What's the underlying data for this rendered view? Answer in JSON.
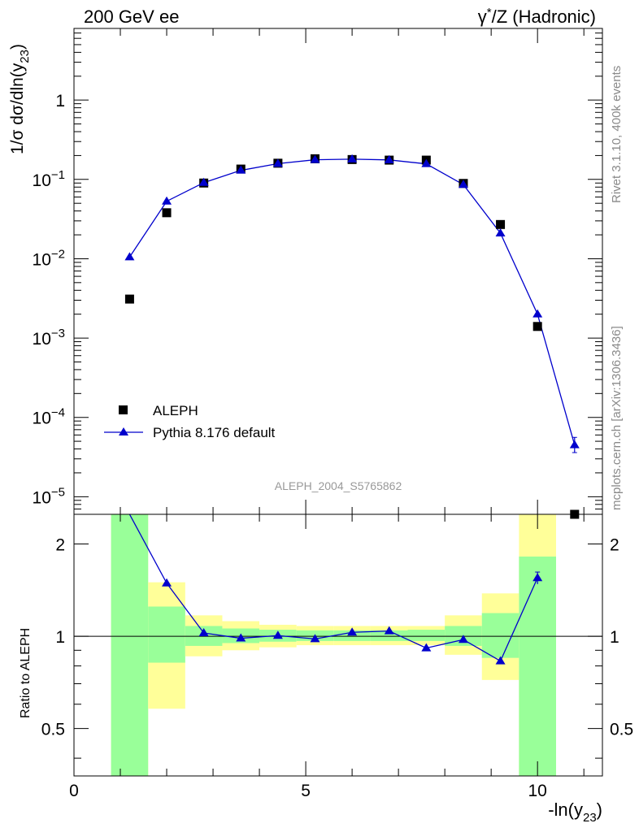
{
  "header": {
    "left_title": "200 GeV ee",
    "right_title_pre": "γ",
    "right_title_sup": "*",
    "right_title_post": "/Z (Hadronic)"
  },
  "side_labels": {
    "rivet": "Rivet 3.1.10,  400k events",
    "mcplots": "mcplots.cern.ch [arXiv:1306.3436]"
  },
  "analysis_label": "ALEPH_2004_S5765862",
  "axes": {
    "main_ylabel_pre": "1/σ  dσ/dln(y",
    "main_ylabel_sub": "23",
    "main_ylabel_post": ")",
    "ratio_ylabel": "Ratio to ALEPH",
    "xlabel_pre": "-ln(y",
    "xlabel_sub": "23",
    "xlabel_post": ")",
    "x_ticks": [
      "0",
      "5",
      "10"
    ],
    "main_y_decades": [
      {
        "base": "10",
        "exp": "−5"
      },
      {
        "base": "10",
        "exp": "−4"
      },
      {
        "base": "10",
        "exp": "−3"
      },
      {
        "base": "10",
        "exp": "−2"
      },
      {
        "base": "10",
        "exp": "−1"
      },
      {
        "base": "1",
        "exp": ""
      }
    ],
    "ratio_y_ticks": [
      "0.5",
      "1",
      "2"
    ]
  },
  "legend": {
    "data_label": "ALEPH",
    "mc_label": "Pythia 8.176 default"
  },
  "colors": {
    "data": "#000000",
    "mc": "#0000cc",
    "band_inner": "#99ff99",
    "band_outer": "#ffff99",
    "side_text": "#8a8a8a"
  },
  "chart_data": [
    {
      "type": "scatter",
      "panel": "main",
      "title": "200 GeV ee — γ*/Z (Hadronic)",
      "xlabel": "-ln(y23)",
      "ylabel": "1/σ dσ/dln(y23)",
      "xlim": [
        0,
        11.4
      ],
      "ylim": [
        6e-06,
        8
      ],
      "yscale": "log",
      "series": [
        {
          "name": "ALEPH",
          "marker": "square",
          "x": [
            1.2,
            2.0,
            2.8,
            3.6,
            4.4,
            5.2,
            6.0,
            6.8,
            7.6,
            8.4,
            9.2,
            10.0,
            10.8
          ],
          "y": [
            0.0031,
            0.038,
            0.09,
            0.135,
            0.16,
            0.182,
            0.178,
            0.175,
            0.175,
            0.089,
            0.027,
            0.0014,
            6e-06
          ]
        },
        {
          "name": "Pythia 8.176 default",
          "marker": "triangle",
          "x": [
            1.2,
            2.0,
            2.8,
            3.6,
            4.4,
            5.2,
            6.0,
            6.8,
            7.6,
            8.4,
            9.2,
            10.0,
            10.8
          ],
          "y": [
            0.0105,
            0.053,
            0.091,
            0.13,
            0.158,
            0.177,
            0.18,
            0.176,
            0.157,
            0.086,
            0.021,
            0.002,
            4.5e-05
          ],
          "y_err_low": [
            0,
            0,
            0,
            0,
            0,
            0,
            0,
            0,
            0,
            0,
            0,
            0,
            3.6e-05
          ],
          "y_err_high": [
            0,
            0,
            0,
            0,
            0,
            0,
            0,
            0,
            0,
            0,
            0,
            0,
            5.6e-05
          ]
        }
      ]
    },
    {
      "type": "line",
      "panel": "ratio",
      "ylabel": "Ratio to ALEPH",
      "xlim": [
        0,
        11.4
      ],
      "ylim": [
        0.35,
        2.5
      ],
      "yscale": "log",
      "reference_line": 1.0,
      "bands": {
        "edges": [
          0.8,
          1.6,
          2.4,
          3.2,
          4.0,
          4.8,
          5.6,
          6.4,
          7.2,
          8.0,
          8.8,
          9.6,
          10.4
        ],
        "inner_low": [
          0.35,
          0.82,
          0.93,
          0.95,
          0.96,
          0.965,
          0.965,
          0.965,
          0.965,
          0.93,
          0.85,
          0.35
        ],
        "inner_high": [
          2.5,
          1.25,
          1.08,
          1.06,
          1.05,
          1.045,
          1.045,
          1.045,
          1.05,
          1.08,
          1.19,
          1.82
        ],
        "outer_low": [
          0.35,
          0.58,
          0.86,
          0.9,
          0.92,
          0.935,
          0.935,
          0.935,
          0.935,
          0.87,
          0.72,
          0.35
        ],
        "outer_high": [
          2.5,
          1.5,
          1.17,
          1.12,
          1.09,
          1.08,
          1.08,
          1.08,
          1.08,
          1.17,
          1.38,
          2.5
        ]
      },
      "series": [
        {
          "name": "Pythia 8.176 default / ALEPH",
          "x": [
            2.0,
            2.8,
            3.6,
            4.4,
            5.2,
            6.0,
            6.8,
            7.6,
            8.4,
            9.2,
            10.0
          ],
          "y": [
            1.49,
            1.025,
            0.985,
            1.005,
            0.98,
            1.03,
            1.04,
            0.915,
            0.975,
            0.83,
            1.55
          ],
          "y_err_low": [
            0,
            0,
            0,
            0,
            0,
            0,
            0,
            0,
            0,
            0,
            0.07
          ],
          "y_err_high": [
            0,
            0,
            0,
            0,
            0,
            0,
            0,
            0,
            0,
            0,
            0.07
          ],
          "offscale_start": {
            "x": 1.2,
            "y": 3.4
          }
        }
      ]
    }
  ]
}
